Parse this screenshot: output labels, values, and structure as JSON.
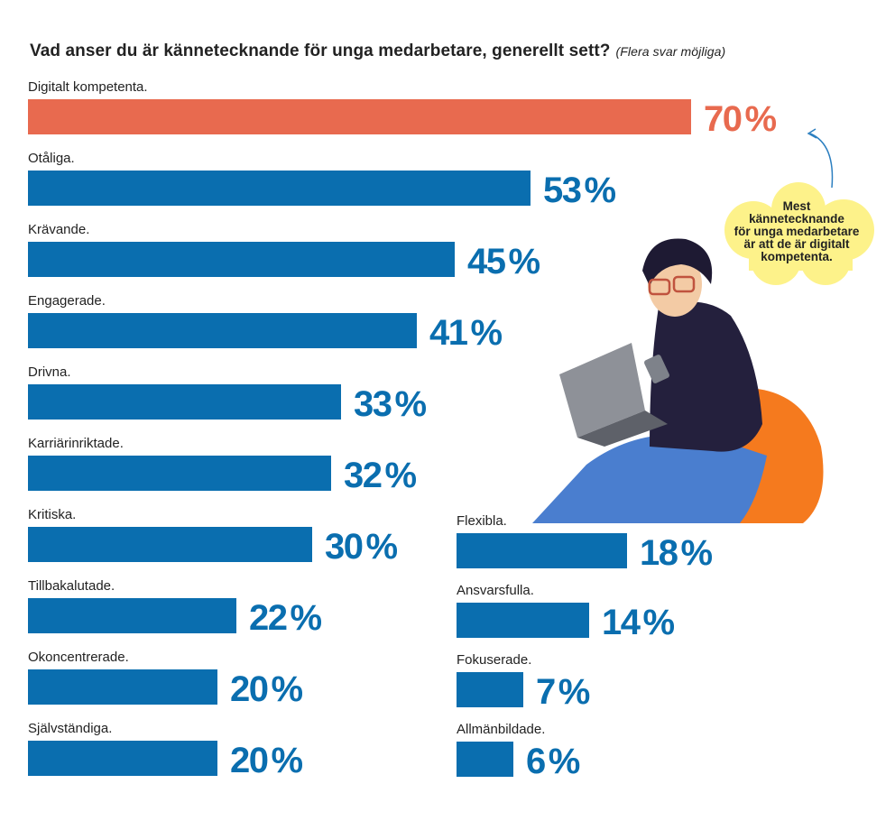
{
  "title": {
    "question": "Vad anser du är kännetecknande för unga medarbetare, generellt sett?",
    "note": "(Flera svar möjliga)"
  },
  "callout": {
    "lines": [
      "Mest",
      "kännetecknande",
      "för unga medarbetare",
      "är att de är digitalt",
      "kompetenta."
    ]
  },
  "colors": {
    "highlight": "#E86A4F",
    "bar": "#0A6EAF",
    "bubble": "#FDF28A"
  },
  "chart_data": {
    "type": "bar",
    "orientation": "horizontal",
    "title": "Vad anser du är kännetecknande för unga medarbetare, generellt sett? (Flera svar möjliga)",
    "unit": "%",
    "xlim": [
      0,
      100
    ],
    "grid": false,
    "highlighted_category": "Digitalt kompetenta.",
    "columns": [
      {
        "column": "left",
        "categories": [
          "Digitalt kompetenta.",
          "Otåliga.",
          "Krävande.",
          "Engagerade.",
          "Drivna.",
          "Karriärinriktade.",
          "Kritiska.",
          "Tillbakalutade.",
          "Okoncentrerade.",
          "Självständiga."
        ],
        "values": [
          70,
          53,
          45,
          41,
          33,
          32,
          30,
          22,
          20,
          20
        ],
        "labels": [
          "70",
          "53",
          "45",
          "41",
          "33",
          "32",
          "30",
          "22",
          "20",
          "20"
        ]
      },
      {
        "column": "right",
        "categories": [
          "Flexibla.",
          "Ansvarsfulla.",
          "Fokuserade.",
          "Allmänbildade."
        ],
        "values": [
          18,
          14,
          7,
          6
        ],
        "labels": [
          "18",
          "14",
          "7",
          "6"
        ]
      }
    ],
    "pct_sign": "%"
  }
}
